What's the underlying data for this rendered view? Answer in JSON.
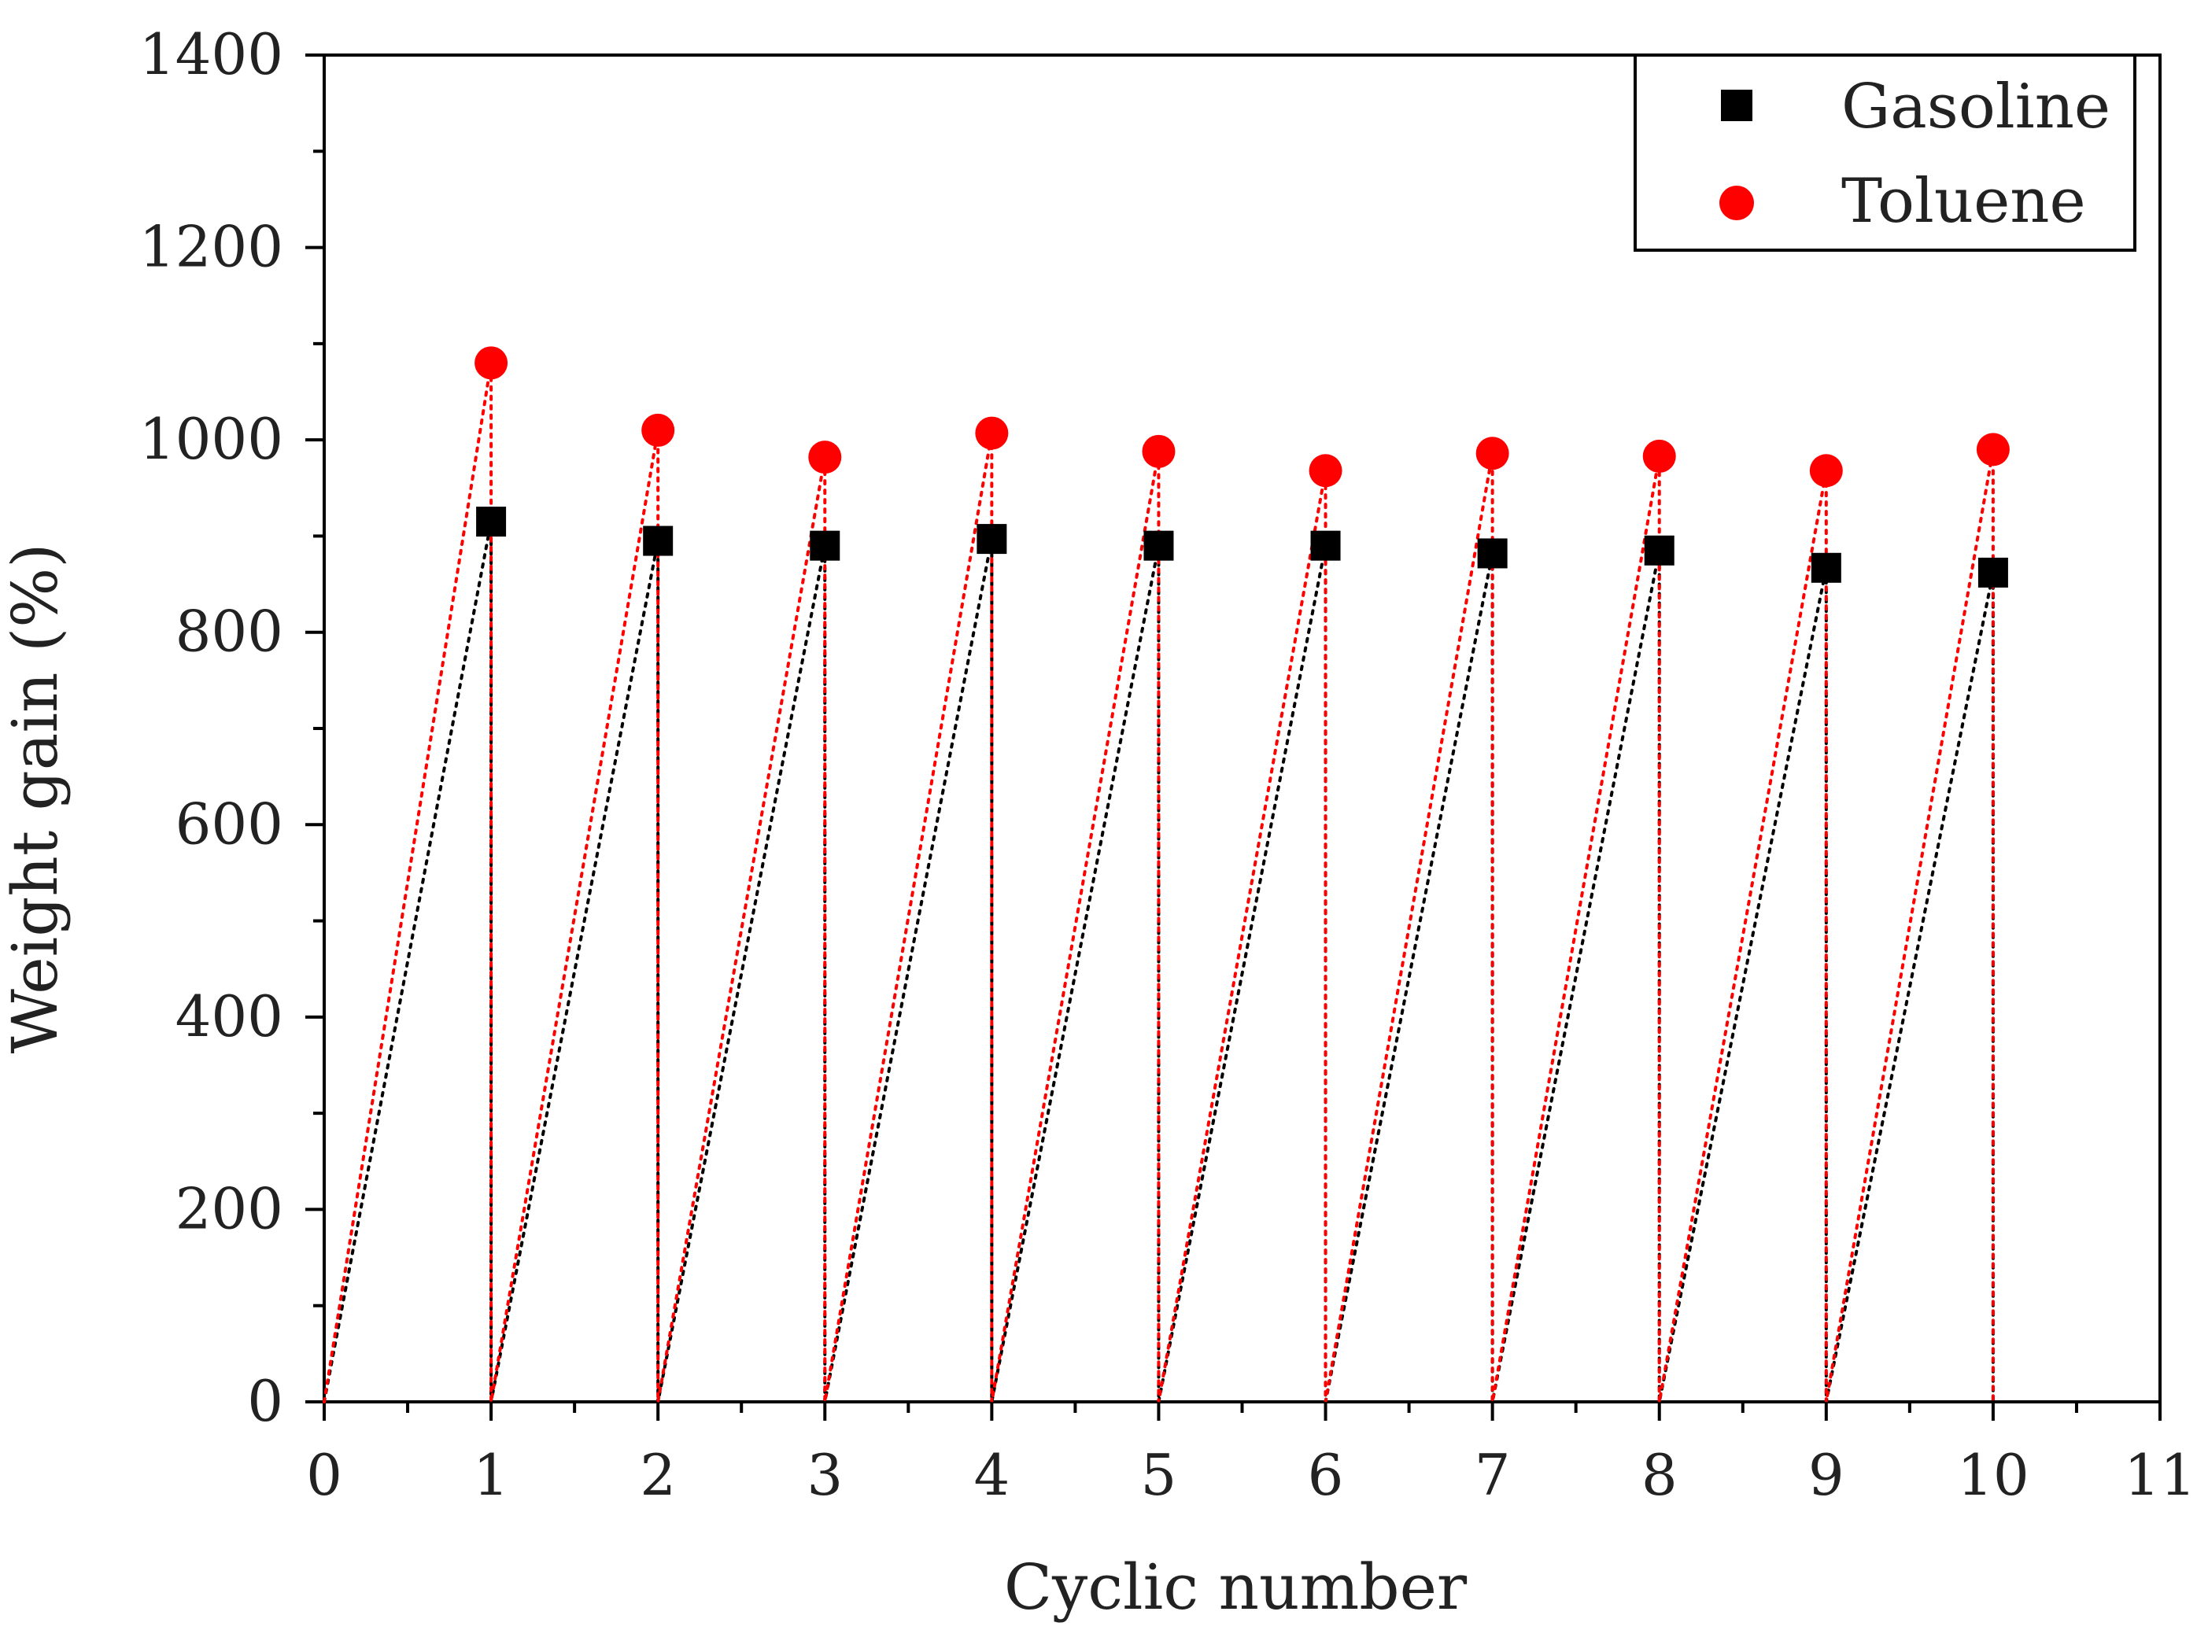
{
  "chart_data": {
    "type": "line",
    "title": "",
    "xlabel": "Cyclic number",
    "ylabel": "Weight gain (%)",
    "xlim": [
      0,
      11
    ],
    "ylim": [
      0,
      1400
    ],
    "x_ticks": [
      "0",
      "1",
      "2",
      "3",
      "4",
      "5",
      "6",
      "7",
      "8",
      "9",
      "10",
      "11"
    ],
    "y_ticks": [
      "0",
      "200",
      "400",
      "600",
      "800",
      "1000",
      "1200",
      "1400"
    ],
    "legend_position": "top-right",
    "series": [
      {
        "name": "Gasoline",
        "color": "#000000",
        "marker": "square",
        "line_style": "dotted",
        "points": [
          {
            "x": 0,
            "y": 0
          },
          {
            "x": 1,
            "y": 915
          },
          {
            "x": 1,
            "y": 0
          },
          {
            "x": 2,
            "y": 895
          },
          {
            "x": 2,
            "y": 0
          },
          {
            "x": 3,
            "y": 890
          },
          {
            "x": 3,
            "y": 0
          },
          {
            "x": 4,
            "y": 897
          },
          {
            "x": 4,
            "y": 0
          },
          {
            "x": 5,
            "y": 890
          },
          {
            "x": 5,
            "y": 0
          },
          {
            "x": 6,
            "y": 890
          },
          {
            "x": 6,
            "y": 0
          },
          {
            "x": 7,
            "y": 882
          },
          {
            "x": 7,
            "y": 0
          },
          {
            "x": 8,
            "y": 885
          },
          {
            "x": 8,
            "y": 0
          },
          {
            "x": 9,
            "y": 867
          },
          {
            "x": 9,
            "y": 0
          },
          {
            "x": 10,
            "y": 862
          },
          {
            "x": 10,
            "y": 0
          }
        ]
      },
      {
        "name": "Toluene",
        "color": "#ff0000",
        "marker": "circle",
        "line_style": "dotted",
        "points": [
          {
            "x": 0,
            "y": 0
          },
          {
            "x": 1,
            "y": 1080
          },
          {
            "x": 1,
            "y": 0
          },
          {
            "x": 2,
            "y": 1010
          },
          {
            "x": 2,
            "y": 0
          },
          {
            "x": 3,
            "y": 982
          },
          {
            "x": 3,
            "y": 0
          },
          {
            "x": 4,
            "y": 1007
          },
          {
            "x": 4,
            "y": 0
          },
          {
            "x": 5,
            "y": 988
          },
          {
            "x": 5,
            "y": 0
          },
          {
            "x": 6,
            "y": 968
          },
          {
            "x": 6,
            "y": 0
          },
          {
            "x": 7,
            "y": 986
          },
          {
            "x": 7,
            "y": 0
          },
          {
            "x": 8,
            "y": 983
          },
          {
            "x": 8,
            "y": 0
          },
          {
            "x": 9,
            "y": 968
          },
          {
            "x": 9,
            "y": 0
          },
          {
            "x": 10,
            "y": 990
          },
          {
            "x": 10,
            "y": 0
          }
        ]
      }
    ]
  }
}
